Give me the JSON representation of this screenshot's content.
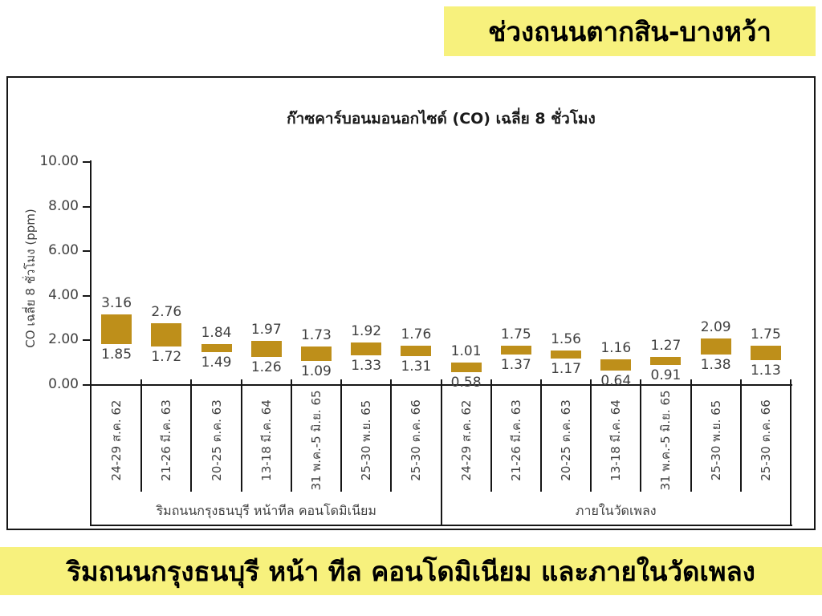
{
  "top_banner": {
    "text": "ช่วงถนนตากสิน-บางหว้า",
    "bg": "#F7F17D"
  },
  "bottom_banner": {
    "text": "ริมถนนกรุงธนบุรี หน้า ทีล คอนโดมิเนียม และภายในวัดเพลง",
    "bg": "#F7F17D"
  },
  "chart_data": {
    "type": "bar",
    "subtype": "floating-range-bar",
    "title": "ก๊าซคาร์บอนมอนอกไซด์ (CO) เฉลี่ย 8 ชั่วโมง",
    "ylabel": "CO  เฉลี่ย 8 ชั่วโมง (ppm)",
    "ylim": [
      0,
      10
    ],
    "ytick_step": 2,
    "ytick_labels": [
      "0.00",
      "2.00",
      "4.00",
      "6.00",
      "8.00",
      "10.00"
    ],
    "grid": false,
    "legend": false,
    "bar_color": "#BE8F1A",
    "axis_color": "#161616",
    "text_color": "#3f3f3f",
    "groups": [
      {
        "label": "ริมถนนกรุงธนบุรี หน้าทีล คอนโดมิเนียม",
        "categories": [
          "24-29 ส.ค. 62",
          "21-26 มี.ค. 63",
          "20-25 ต.ค. 63",
          "13-18 มี.ค. 64",
          "31 พ.ค.-5 มิ.ย. 65",
          "25-30 พ.ย. 65",
          "25-30 ต.ค. 66"
        ],
        "min": [
          1.85,
          1.72,
          1.49,
          1.26,
          1.09,
          1.33,
          1.31
        ],
        "max": [
          3.16,
          2.76,
          1.84,
          1.97,
          1.73,
          1.92,
          1.76
        ]
      },
      {
        "label": "ภายในวัดเพลง",
        "categories": [
          "24-29 ส.ค. 62",
          "21-26 มี.ค. 63",
          "20-25 ต.ค. 63",
          "13-18 มี.ค. 64",
          "31 พ.ค.-5 มิ.ย. 65",
          "25-30 พ.ย. 65",
          "25-30 ต.ค. 66"
        ],
        "min": [
          0.58,
          1.37,
          1.17,
          0.64,
          0.91,
          1.38,
          1.13
        ],
        "max": [
          1.01,
          1.75,
          1.56,
          1.16,
          1.27,
          2.09,
          1.75
        ]
      }
    ]
  }
}
